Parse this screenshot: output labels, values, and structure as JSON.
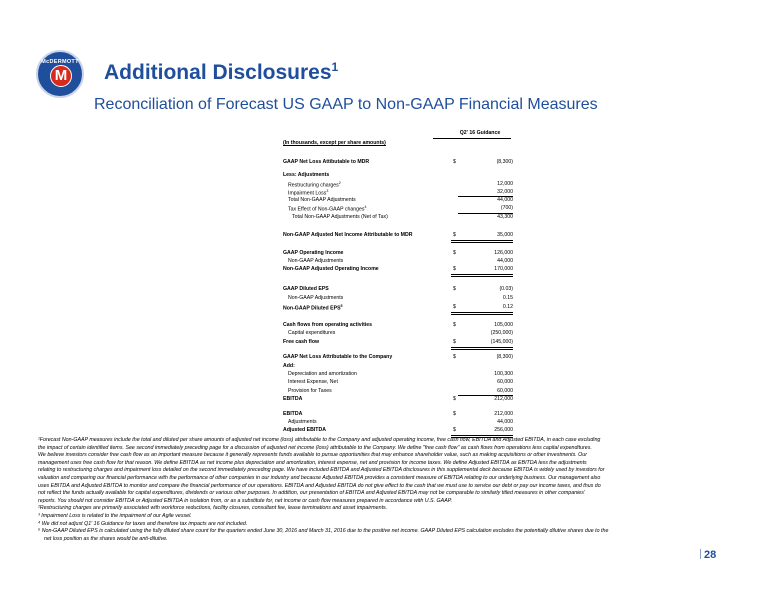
{
  "logo": {
    "ring_text": "McDERMOTT",
    "letter": "M"
  },
  "header": {
    "title": "Additional Disclosures",
    "title_sup": "1",
    "subtitle": "Reconciliation of Forecast US GAAP to Non-GAAP Financial Measures"
  },
  "table": {
    "column_header": "Q2' 16 Guidance",
    "units_note": "(In thousands, except per share amounts)",
    "rows": [
      {
        "label": "GAAP Net Loss Attibutable to MDR",
        "sup": "",
        "cur": "$",
        "value": "(8,300)"
      },
      {
        "label": "Less: Adjustments",
        "sup": "",
        "cur": "",
        "value": ""
      },
      {
        "label": "Restructuring charges",
        "sup": "2",
        "cur": "",
        "value": "12,000"
      },
      {
        "label": "Impairment Loss",
        "sup": "3",
        "cur": "",
        "value": "32,000"
      },
      {
        "label": "Total Non-GAAP Adjustments",
        "sup": "",
        "cur": "",
        "value": "44,000"
      },
      {
        "label": "Tax Effect of Non-GAAP changes",
        "sup": "4",
        "cur": "",
        "value": "(700)"
      },
      {
        "label": "Total Non-GAAP Adjustments (Net of Tax)",
        "sup": "",
        "cur": "",
        "value": "43,300"
      },
      {
        "label": "Non-GAAP Adjusted Net Income Attributable to MDR",
        "sup": "",
        "cur": "$",
        "value": "35,000"
      },
      {
        "label": "GAAP Operating Income",
        "sup": "",
        "cur": "$",
        "value": "126,000"
      },
      {
        "label": "Non-GAAP Adjustments",
        "sup": "",
        "cur": "",
        "value": "44,000"
      },
      {
        "label": "Non-GAAP Adjusted Operating Income",
        "sup": "",
        "cur": "$",
        "value": "170,000"
      },
      {
        "label": "GAAP Diluted EPS",
        "sup": "",
        "cur": "$",
        "value": "(0.03)"
      },
      {
        "label": "Non-GAAP Adjustments",
        "sup": "",
        "cur": "",
        "value": "0.15"
      },
      {
        "label": "Non-GAAP Diluted EPS",
        "sup": "5",
        "cur": "$",
        "value": "0.12"
      },
      {
        "label": "Cash flows from operating activities",
        "sup": "",
        "cur": "$",
        "value": "105,000"
      },
      {
        "label": "Capital expenditures",
        "sup": "",
        "cur": "",
        "value": "(250,000)"
      },
      {
        "label": "Free cash flow",
        "sup": "",
        "cur": "$",
        "value": "(145,000)"
      },
      {
        "label": "GAAP Net Loss Attributable to the Company",
        "sup": "",
        "cur": "$",
        "value": "(8,300)"
      },
      {
        "label": "Add:",
        "sup": "",
        "cur": "",
        "value": ""
      },
      {
        "label": "Depreciation and amortization",
        "sup": "",
        "cur": "",
        "value": "100,300"
      },
      {
        "label": "Interest Expense, Net",
        "sup": "",
        "cur": "",
        "value": "60,000"
      },
      {
        "label": "Provision for Taxes",
        "sup": "",
        "cur": "",
        "value": "60,000"
      },
      {
        "label": "EBITDA",
        "sup": "",
        "cur": "$",
        "value": "212,000"
      },
      {
        "label": "EBITDA",
        "sup": "",
        "cur": "$",
        "value": "212,000"
      },
      {
        "label": "Adjustments",
        "sup": "",
        "cur": "",
        "value": "44,000"
      },
      {
        "label": "Adjusted EBITDA",
        "sup": "",
        "cur": "$",
        "value": "256,000"
      }
    ]
  },
  "footnotes": [
    "¹Forecast Non-GAAP measures include the total and diluted per share amounts of adjusted net income (loss) attributable to the Company and adjusted operating income, free cash flow, EBITDA and Adjusted EBITDA, in each case excluding",
    "the impact of certain identified items. See second immediately preceding page for a discussion of adjusted net income (loss) attributable to the Company. We define \"free cash flow\" as cash flows from operations less capital expenditures.",
    "We believe investors consider free cash flow as an important measure because it generally represents funds available to pursue opportunities that may enhance shareholder value, such as making acquisitions or other investments. Our",
    "management uses free cash flow for that reason. We define EBITDA as net income plus depreciation and amortization, interest expense, net and provision for income taxes. We define Adjusted EBITDA as EBITDA less the adjustments",
    "relating to restructuring charges and impairment loss detailed on the second immediately preceding page. We have included EBITDA and Adjusted EBITDA disclosures in this supplemental deck because EBITDA is widely used by investors for",
    "valuation and comparing our financial performance with the performance of other companies in our industry and because Adjusted EBITDA provides a consistent measure of EBITDA relating to our underlying business. Our management also",
    "uses EBITDA and Adjusted EBITDA to monitor and compare the financial performance of our operations. EBITDA and Adjusted EBITDA do not give effect to the cash that we must use to service our debt or pay our income taxes, and thus do",
    "not reflect the funds actually available for capital expenditures, dividends or various other purposes. In addition, our presentation of EBITDA and Adjusted EBITDA may not be comparable to similarly titled measures in other companies'",
    "reports. You should not consider EBITDA or Adjusted EBITDA in isolation from, or as a substitute for, net income or cash flow measures prepared in accordance with U.S. GAAP.",
    "²Restructuring charges are primarily associated with workforce reductions, facility closures, consultant fee, lease terminations and asset impairments.",
    "³ Impairment Loss is related to the impairment of our Agile vessel.",
    "⁴ We did not adjust Q1' 16 Guidance for taxes and therefore tax impacts are not included.",
    "⁵ Non-GAAP Diluted EPS is calculated using the fully diluted share count for the quarters ended June 30, 2016 and March 31, 2016 due to the positive net income. GAAP Diluted EPS calculation excludes the potentially dilutive shares due to the",
    "net loss position as the shares would be anti-dilutive."
  ],
  "page_number": "28"
}
